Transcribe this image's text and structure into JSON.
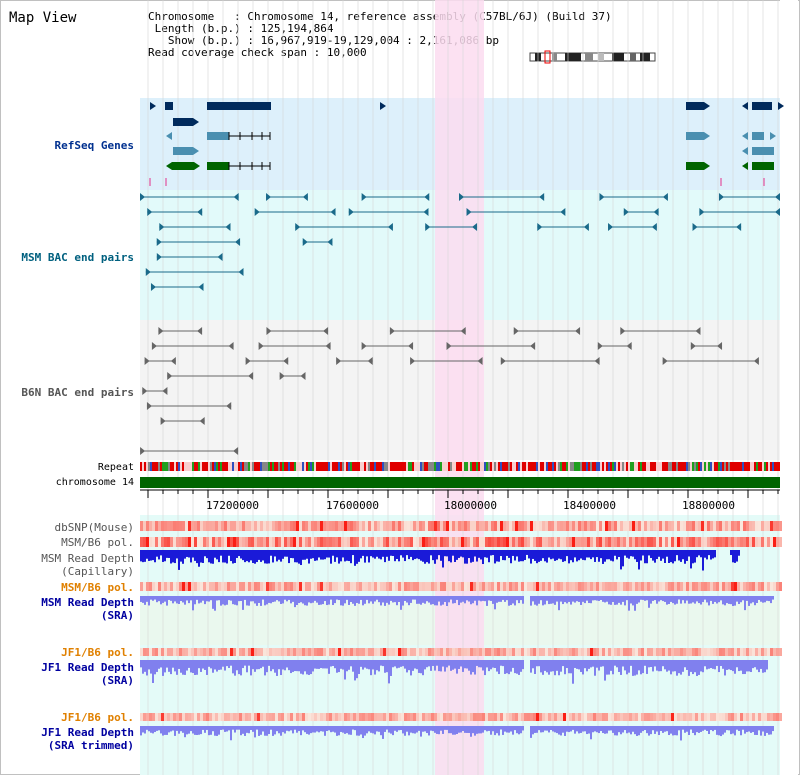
{
  "title": "Map View",
  "info": {
    "chromosome_key": "Chromosome   ",
    "chromosome_val": "Chromosome 14, reference assembly (C57BL/6J) (Build 37)",
    "length_key": "Length (b.p.)",
    "length_val": "125,194,864",
    "show_key": "Show (b.p.)",
    "show_val": "16,967,919-19,129,004 : 2,161,086 bp",
    "coverage_key": "Read coverage check span",
    "coverage_val": "10,000"
  },
  "tracks": {
    "refseq": "RefSeq Genes",
    "msm_bac": "MSM BAC end pairs",
    "b6n_bac": "B6N BAC end pairs",
    "repeat": "Repeat",
    "chromosome": "chromosome 14",
    "dbsnp": "dbSNP(Mouse)",
    "msm_b6_pol_1": "MSM/B6 pol.",
    "msm_read_depth_cap_1": "MSM Read Depth",
    "msm_read_depth_cap_2": "(Capillary)",
    "msm_b6_pol_2": "MSM/B6 pol.",
    "msm_read_depth_sra_1": "MSM Read Depth",
    "msm_read_depth_sra_2": "(SRA)",
    "jf1_b6_pol_1": "JF1/B6 pol.",
    "jf1_read_depth_sra_1": "JF1 Read Depth",
    "jf1_read_depth_sra_2": "(SRA)",
    "jf1_b6_pol_2": "JF1/B6 pol.",
    "jf1_read_depth_trim_1": "JF1 Read Depth",
    "jf1_read_depth_trim_2": "(SRA trimmed)"
  },
  "axis": {
    "ticks": [
      "17200000",
      "17600000",
      "18000000",
      "18400000",
      "18800000"
    ]
  },
  "colors": {
    "refseq_bg": "#ddf0fb",
    "msm_bg": "#e2fafa",
    "highlight": "#fbdcf0",
    "chromosome_bar": "#006400",
    "repeat_red": "#e00000",
    "gene_navy": "#002a5c",
    "gene_teal": "#4a8fb0",
    "gene_green": "#006400",
    "depth_blue": "#1a1ad8",
    "depth_lavender": "#8080ee",
    "pol_pink": "#f5a0a0"
  }
}
